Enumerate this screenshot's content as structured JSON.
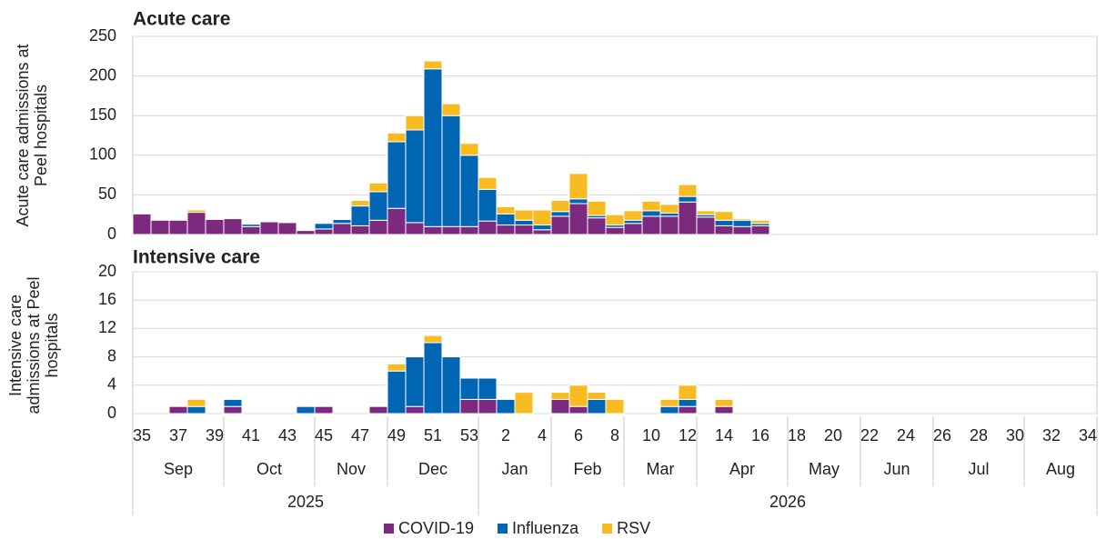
{
  "chart_data": [
    {
      "type": "bar",
      "stacked": true,
      "title": "Acute care",
      "ylabel": [
        "Acute care admissions at",
        "Peel hospitals"
      ],
      "ylim": [
        0,
        250
      ],
      "yticks": [
        0,
        50,
        100,
        150,
        200,
        250
      ],
      "grid": true,
      "series": [
        {
          "color": "#7b2a7f",
          "values": [
            26,
            18,
            18,
            28,
            19,
            20,
            10,
            16,
            15,
            5,
            7,
            14,
            11,
            18,
            33,
            15,
            10,
            10,
            10,
            17,
            12,
            12,
            6,
            23,
            39,
            21,
            9,
            14,
            23,
            23,
            41,
            22,
            11,
            10,
            11,
            null,
            null,
            null,
            null,
            null,
            null,
            null,
            null,
            null,
            null,
            null,
            null,
            null,
            null,
            null,
            null,
            null,
            null
          ]
        },
        {
          "color": "#0065b3",
          "values": [
            0,
            0,
            0,
            0,
            0,
            1,
            3,
            0,
            0,
            0,
            7,
            5,
            25,
            36,
            84,
            117,
            199,
            140,
            90,
            40,
            14,
            6,
            6,
            6,
            6,
            3,
            3,
            4,
            7,
            4,
            7,
            3,
            7,
            8,
            3,
            null,
            null,
            null,
            null,
            null,
            null,
            null,
            null,
            null,
            null,
            null,
            null,
            null,
            null,
            null,
            null,
            null,
            null
          ]
        },
        {
          "color": "#f8bb22",
          "values": [
            0,
            0,
            0,
            3,
            0,
            0,
            0,
            0,
            0,
            0,
            0,
            1,
            7,
            11,
            11,
            18,
            10,
            15,
            15,
            15,
            9,
            13,
            19,
            14,
            32,
            18,
            13,
            12,
            12,
            11,
            15,
            5,
            11,
            2,
            4,
            null,
            null,
            null,
            null,
            null,
            null,
            null,
            null,
            null,
            null,
            null,
            null,
            null,
            null,
            null,
            null,
            null,
            null
          ]
        }
      ]
    },
    {
      "type": "bar",
      "stacked": true,
      "title": "Intensive care",
      "ylabel": [
        "Intensive care",
        "admissions at Peel",
        "hospitals"
      ],
      "ylim": [
        0,
        20
      ],
      "yticks": [
        0,
        4,
        8,
        12,
        16,
        20
      ],
      "grid": true,
      "categories": [
        "35",
        null,
        "37",
        null,
        "39",
        null,
        "41",
        null,
        "43",
        null,
        "45",
        null,
        "47",
        null,
        "49",
        null,
        "51",
        null,
        "53",
        null,
        "2",
        null,
        "4",
        null,
        "6",
        null,
        "8",
        null,
        "10",
        null,
        "12",
        null,
        "14",
        null,
        "16",
        null,
        "18",
        null,
        "20",
        null,
        "22",
        null,
        "24",
        null,
        "26",
        null,
        "28",
        null,
        "30",
        null,
        "32",
        null,
        "34"
      ],
      "month_spans": [
        {
          "label": "Sep",
          "span": 5
        },
        {
          "label": "Oct",
          "span": 5
        },
        {
          "label": "Nov",
          "span": 4
        },
        {
          "label": "Dec",
          "span": 5
        },
        {
          "label": "Jan",
          "span": 4
        },
        {
          "label": "Feb",
          "span": 4
        },
        {
          "label": "Mar",
          "span": 4
        },
        {
          "label": "Apr",
          "span": 5
        },
        {
          "label": "May",
          "span": 4
        },
        {
          "label": "Jun",
          "span": 4
        },
        {
          "label": "Jul",
          "span": 5
        },
        {
          "label": "Aug",
          "span": 4
        }
      ],
      "year_spans": [
        {
          "label": "2025",
          "span": 19
        },
        {
          "label": "2026",
          "span": 34
        }
      ],
      "series": [
        {
          "name": "COVID-19",
          "color": "#7b2a7f",
          "values": [
            0,
            0,
            1,
            0,
            0,
            1,
            0,
            0,
            0,
            0,
            1,
            0,
            0,
            1,
            0,
            1,
            0,
            0,
            2,
            2,
            0,
            0,
            0,
            2,
            1,
            0,
            0,
            0,
            0,
            0,
            1,
            0,
            1,
            0,
            0,
            null,
            null,
            null,
            null,
            null,
            null,
            null,
            null,
            null,
            null,
            null,
            null,
            null,
            null,
            null,
            null,
            null,
            null
          ]
        },
        {
          "name": "Influenza",
          "color": "#0065b3",
          "values": [
            0,
            0,
            0,
            1,
            0,
            1,
            0,
            0,
            0,
            1,
            0,
            0,
            0,
            0,
            6,
            7,
            10,
            8,
            3,
            3,
            2,
            0,
            0,
            0,
            0,
            2,
            0,
            0,
            0,
            1,
            1,
            0,
            0,
            0,
            0,
            null,
            null,
            null,
            null,
            null,
            null,
            null,
            null,
            null,
            null,
            null,
            null,
            null,
            null,
            null,
            null,
            null,
            null
          ]
        },
        {
          "name": "RSV",
          "color": "#f8bb22",
          "values": [
            0,
            0,
            0,
            1,
            0,
            0,
            0,
            0,
            0,
            0,
            0,
            0,
            0,
            0,
            1,
            0,
            1,
            0,
            0,
            0,
            0,
            3,
            0,
            1,
            3,
            1,
            2,
            0,
            0,
            1,
            2,
            0,
            1,
            0,
            0,
            null,
            null,
            null,
            null,
            null,
            null,
            null,
            null,
            null,
            null,
            null,
            null,
            null,
            null,
            null,
            null,
            null,
            null
          ]
        }
      ]
    }
  ]
}
